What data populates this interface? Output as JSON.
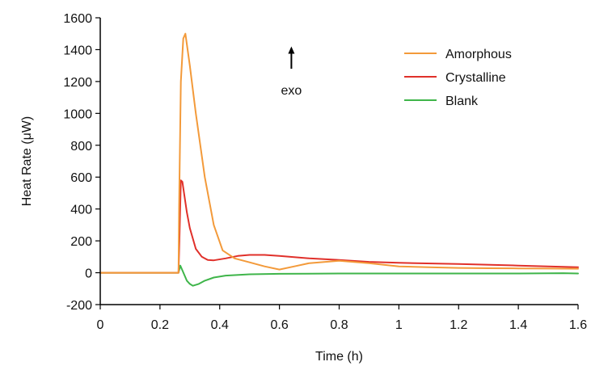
{
  "chart_data": {
    "type": "line",
    "xlabel": "Time (h)",
    "ylabel": "Heat Rate (μW)",
    "xlim": [
      0,
      1.6
    ],
    "ylim": [
      -200,
      1600
    ],
    "xticks": [
      0,
      0.2,
      0.4,
      0.6,
      0.8,
      1,
      1.2,
      1.4,
      1.6
    ],
    "xtick_labels": [
      "0",
      "0.2",
      "0.4",
      "0.6",
      "0.8",
      "1",
      "1.2",
      "1.4",
      "1.6"
    ],
    "yticks": [
      -200,
      0,
      200,
      400,
      600,
      800,
      1000,
      1200,
      1400,
      1600
    ],
    "ytick_labels": [
      "-200",
      "0",
      "200",
      "400",
      "600",
      "800",
      "1000",
      "1200",
      "1400",
      "1600"
    ],
    "grid": false,
    "legend_position": "top-right",
    "annotation": {
      "text": "exo",
      "x": 0.64,
      "arrow_from_y": 1280,
      "arrow_to_y": 1420
    },
    "series": [
      {
        "name": "Amorphous",
        "color": "#f39a3a",
        "x": [
          0,
          0.2,
          0.25,
          0.262,
          0.264,
          0.27,
          0.278,
          0.285,
          0.3,
          0.32,
          0.35,
          0.38,
          0.41,
          0.45,
          0.5,
          0.55,
          0.6,
          0.65,
          0.7,
          0.8,
          0.9,
          1.0,
          1.1,
          1.2,
          1.3,
          1.4,
          1.5,
          1.6
        ],
        "y": [
          0,
          0,
          0,
          0,
          400,
          1200,
          1470,
          1500,
          1300,
          1000,
          600,
          300,
          140,
          90,
          65,
          40,
          20,
          40,
          60,
          75,
          60,
          40,
          35,
          30,
          28,
          27,
          26,
          25
        ]
      },
      {
        "name": "Crystalline",
        "color": "#e0302a",
        "x": [
          0,
          0.2,
          0.25,
          0.262,
          0.265,
          0.27,
          0.275,
          0.29,
          0.3,
          0.32,
          0.34,
          0.36,
          0.38,
          0.42,
          0.46,
          0.5,
          0.55,
          0.6,
          0.7,
          0.8,
          0.9,
          1.0,
          1.2,
          1.4,
          1.6
        ],
        "y": [
          0,
          0,
          0,
          0,
          200,
          580,
          570,
          380,
          280,
          150,
          100,
          80,
          78,
          90,
          105,
          112,
          112,
          105,
          90,
          80,
          68,
          62,
          55,
          45,
          35
        ]
      },
      {
        "name": "Blank",
        "color": "#3fb54a",
        "x": [
          0,
          0.2,
          0.25,
          0.262,
          0.268,
          0.275,
          0.29,
          0.3,
          0.31,
          0.33,
          0.35,
          0.38,
          0.42,
          0.5,
          0.6,
          0.8,
          1.0,
          1.2,
          1.4,
          1.55,
          1.6
        ],
        "y": [
          0,
          0,
          0,
          0,
          45,
          15,
          -50,
          -70,
          -82,
          -70,
          -50,
          -30,
          -18,
          -10,
          -7,
          -5,
          -5,
          -5,
          -5,
          -3,
          -5
        ]
      }
    ]
  }
}
